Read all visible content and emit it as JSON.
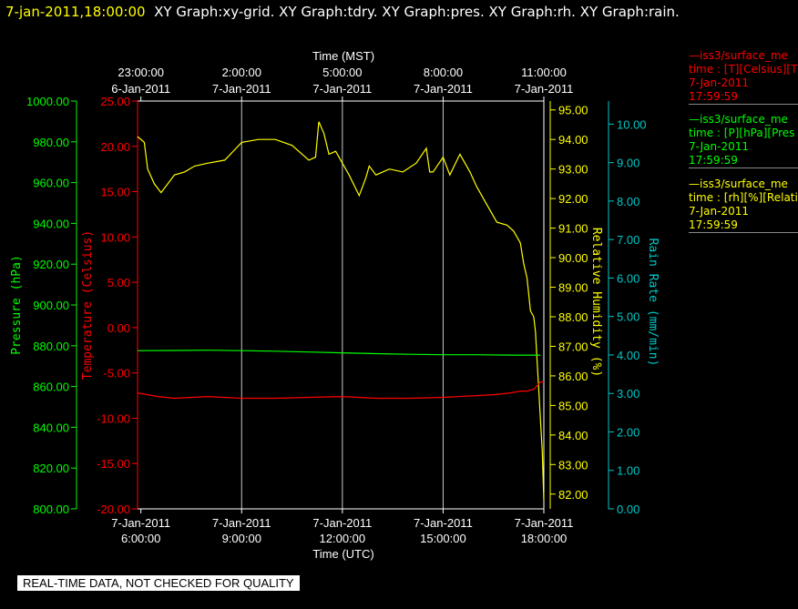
{
  "header": {
    "timestamp": "7-jan-2011,18:00:00",
    "graphs": "XY Graph:xy-grid.  XY Graph:tdry.  XY Graph:pres.  XY Graph:rh.  XY Graph:rain."
  },
  "legend": [
    {
      "line": "—iss3/surface_me",
      "var": "time : [T][Celsius][T",
      "date": "7-Jan-2011",
      "time": "17:59:59",
      "color": "#ff0000"
    },
    {
      "line": "—iss3/surface_me",
      "var": "time : [P][hPa][Pres",
      "date": "7-Jan-2011",
      "time": "17:59:59",
      "color": "#00ff00"
    },
    {
      "line": "—iss3/surface_me",
      "var": "time : [rh][%][Relati",
      "date": "7-Jan-2011",
      "time": "17:59:59",
      "color": "#ffff00"
    }
  ],
  "warning": "REAL-TIME DATA, NOT CHECKED FOR QUALITY",
  "chart_data": {
    "type": "line",
    "grid": true,
    "x_top": {
      "label": "Time (MST)",
      "ticks": [
        {
          "time": "23:00:00",
          "date": "6-Jan-2011"
        },
        {
          "time": "2:00:00",
          "date": "7-Jan-2011"
        },
        {
          "time": "5:00:00",
          "date": "7-Jan-2011"
        },
        {
          "time": "8:00:00",
          "date": "7-Jan-2011"
        },
        {
          "time": "11:00:00",
          "date": "7-Jan-2011"
        }
      ]
    },
    "x_bottom": {
      "label": "Time (UTC)",
      "ticks": [
        {
          "date": "7-Jan-2011",
          "time": "6:00:00"
        },
        {
          "date": "7-Jan-2011",
          "time": "9:00:00"
        },
        {
          "date": "7-Jan-2011",
          "time": "12:00:00"
        },
        {
          "date": "7-Jan-2011",
          "time": "15:00:00"
        },
        {
          "date": "7-Jan-2011",
          "time": "18:00:00"
        }
      ],
      "range_hours_utc": [
        5.9,
        18.0
      ]
    },
    "axes": {
      "pressure": {
        "label": "Pressure (hPa)",
        "color": "#00ff00",
        "range": [
          800,
          1000
        ],
        "ticks": [
          "1000.00",
          "980.00",
          "960.00",
          "940.00",
          "920.00",
          "900.00",
          "880.00",
          "860.00",
          "840.00",
          "820.00",
          "800.00"
        ]
      },
      "temperature": {
        "label": "Temperature (Celsius)",
        "color": "#ff0000",
        "range": [
          -20,
          25
        ],
        "ticks": [
          "25.00",
          "20.00",
          "15.00",
          "10.00",
          "5.00",
          "0.00",
          "-5.00",
          "-10.00",
          "-15.00",
          "-20.00"
        ]
      },
      "rh": {
        "label": "Relative Humidity (%)",
        "color": "#ffff00",
        "range": [
          81.5,
          95.3
        ],
        "ticks": [
          "95.00",
          "94.00",
          "93.00",
          "92.00",
          "91.00",
          "90.00",
          "89.00",
          "88.00",
          "87.00",
          "86.00",
          "85.00",
          "84.00",
          "83.00",
          "82.00"
        ]
      },
      "rain": {
        "label": "Rain Rate (mm/min)",
        "color": "#00c8c8",
        "range": [
          0,
          10.6
        ],
        "ticks": [
          "10.00",
          "9.00",
          "8.00",
          "7.00",
          "6.00",
          "5.00",
          "4.00",
          "3.00",
          "2.00",
          "1.00",
          "0.00"
        ]
      }
    },
    "series": [
      {
        "name": "iss3/surface_me T",
        "axis": "rh",
        "color": "#ffff00",
        "x": [
          5.9,
          6.1,
          6.2,
          6.4,
          6.6,
          6.8,
          7.0,
          7.3,
          7.6,
          8.0,
          8.5,
          9.0,
          9.5,
          10.0,
          10.5,
          11.0,
          11.2,
          11.3,
          11.45,
          11.6,
          11.8,
          12.0,
          12.2,
          12.5,
          12.7,
          12.8,
          13.0,
          13.4,
          13.8,
          14.2,
          14.5,
          14.6,
          14.7,
          15.0,
          15.2,
          15.5,
          15.8,
          16.0,
          16.3,
          16.6,
          16.9,
          17.1,
          17.3,
          17.4,
          17.5,
          17.6,
          17.7,
          17.75,
          17.8,
          17.85,
          17.9,
          17.95,
          18.0
        ],
        "y": [
          94.1,
          93.9,
          93.0,
          92.5,
          92.2,
          92.5,
          92.8,
          92.9,
          93.1,
          93.2,
          93.3,
          93.9,
          94.0,
          94.0,
          93.8,
          93.3,
          93.4,
          94.6,
          94.2,
          93.5,
          93.6,
          93.2,
          92.8,
          92.1,
          92.7,
          93.1,
          92.8,
          93.0,
          92.9,
          93.2,
          93.7,
          92.9,
          92.9,
          93.4,
          92.8,
          93.5,
          92.9,
          92.4,
          91.8,
          91.2,
          91.1,
          90.9,
          90.5,
          89.8,
          89.3,
          88.2,
          88.0,
          87.5,
          86.5,
          85.5,
          84.5,
          83.5,
          81.8
        ]
      },
      {
        "name": "iss3/surface_me T",
        "axis": "temperature",
        "color": "#ff0000",
        "x": [
          5.9,
          6.5,
          7.0,
          8.0,
          9.0,
          10.0,
          11.0,
          12.0,
          13.0,
          14.0,
          15.0,
          16.0,
          16.5,
          17.0,
          17.3,
          17.5,
          17.7,
          17.8,
          17.9,
          18.0
        ],
        "y": [
          -7.2,
          -7.6,
          -7.8,
          -7.6,
          -7.8,
          -7.8,
          -7.7,
          -7.6,
          -7.8,
          -7.8,
          -7.7,
          -7.5,
          -7.4,
          -7.2,
          -7.0,
          -7.0,
          -6.8,
          -6.4,
          -6.0,
          -6.0
        ]
      },
      {
        "name": "iss3/surface_me P",
        "axis": "pressure",
        "color": "#00ff00",
        "x": [
          5.9,
          7.0,
          8.0,
          9.0,
          10.0,
          11.0,
          12.0,
          13.0,
          14.0,
          15.0,
          16.0,
          17.0,
          17.5,
          17.8,
          17.9
        ],
        "y": [
          877.6,
          877.7,
          877.8,
          877.6,
          877.3,
          876.9,
          876.5,
          876.1,
          875.8,
          875.6,
          875.6,
          875.4,
          875.4,
          875.4,
          875.4
        ]
      }
    ]
  }
}
